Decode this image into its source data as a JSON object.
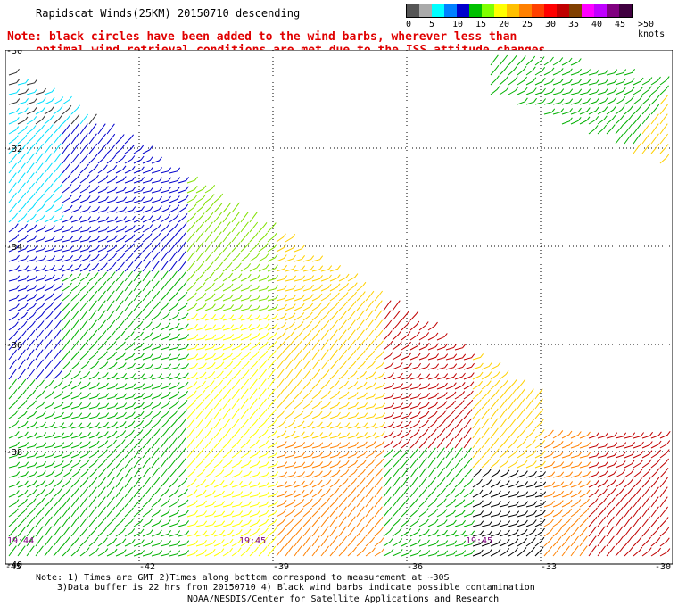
{
  "title": "Rapidscat Winds(25KM) 20150710 descending",
  "note_line1": "Note: black circles have been added to the wind barbs, wherever less than",
  "note_line2": "optimal wind retrieval conditions are met due to the ISS attitude changes.",
  "legend": {
    "colors": [
      "#555555",
      "#aaaaaa",
      "#00ffff",
      "#0080ff",
      "#0000cc",
      "#00c000",
      "#80ff00",
      "#ffff00",
      "#ffc000",
      "#ff8000",
      "#ff4000",
      "#ff0000",
      "#c00000",
      "#804000",
      "#ff00ff",
      "#c000ff",
      "#800080",
      "#400040"
    ],
    "labels": [
      "0",
      "5",
      "10",
      "15",
      "20",
      "25",
      "30",
      "35",
      "40",
      "45",
      ">50 knots"
    ]
  },
  "map": {
    "lat_labels": [
      "-30",
      "-32",
      "-34",
      "-36",
      "-38",
      "-40"
    ],
    "lon_labels": [
      "-45",
      "-42",
      "-39",
      "-36",
      "-33",
      "-30"
    ],
    "time_labels": [
      "19:44",
      "19:45",
      "19:45"
    ]
  },
  "footer": {
    "line1": "Note: 1) Times are GMT 2)Times along bottom correspond to measurement at ~30S",
    "line2": "3)Data buffer is 22 hrs from 20150710 4) Black wind barbs indicate possible contamination",
    "line3": "NOAA/NESDIS/Center for Satellite Applications and Research"
  }
}
